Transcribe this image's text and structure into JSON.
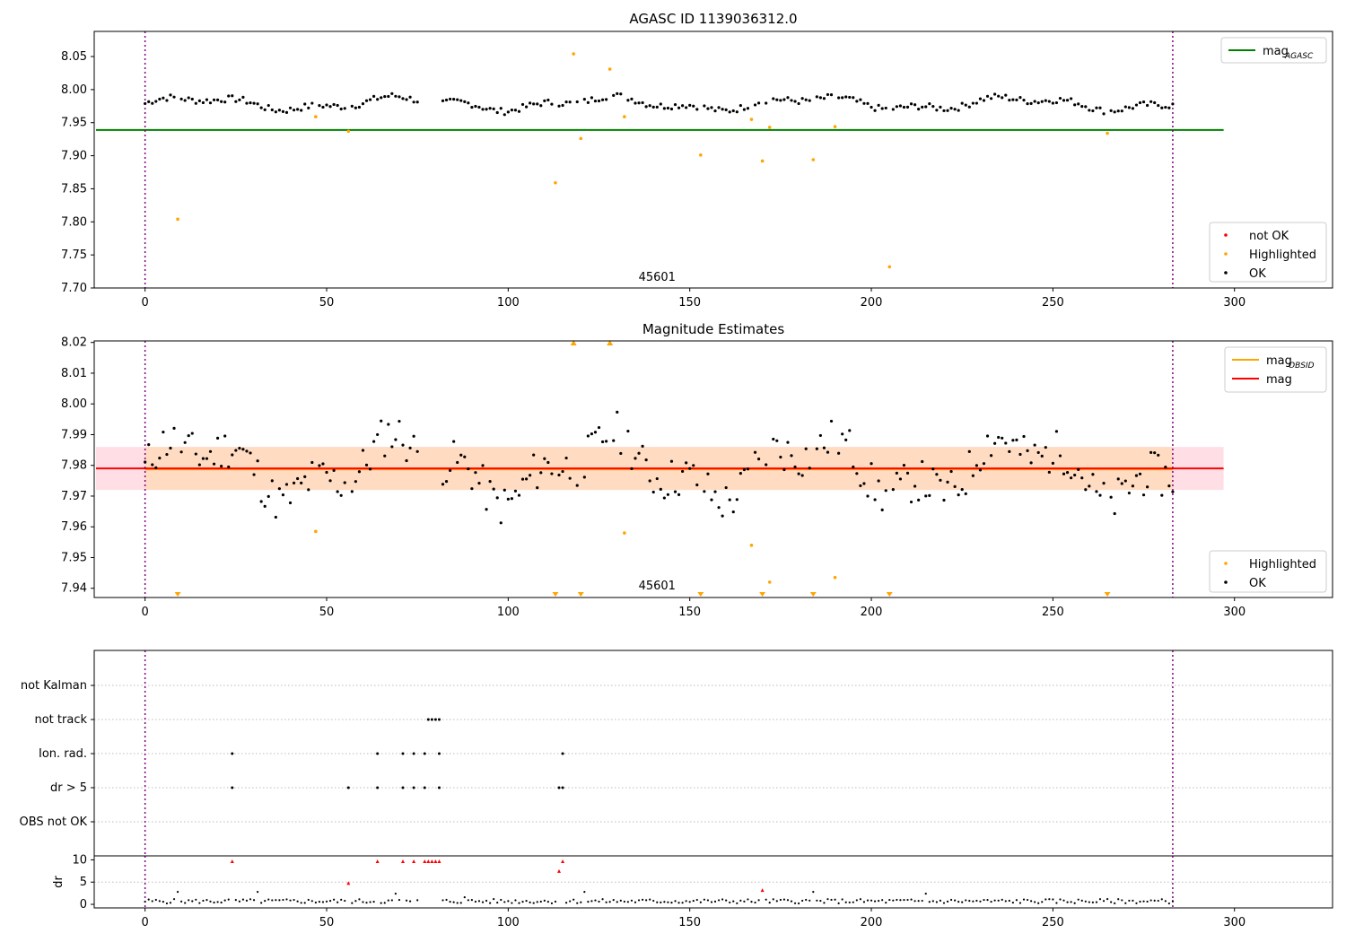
{
  "figure": {
    "title": "AGASC ID 1139036312.0",
    "colors": {
      "ok": "#000000",
      "highlighted": "#ffa500",
      "not_ok": "#ff0000",
      "agasc_line": "#008000",
      "mag_line": "#ff0000",
      "obsid_line": "#ffa500",
      "band_mag": "#ffc0cb",
      "band_obsid": "#ffdab9",
      "obs_boundary": "#800080"
    }
  },
  "chart_data": [
    {
      "type": "scatter",
      "name": "agasc-magnitude-panel",
      "title": "AGASC ID 1139036312.0",
      "xlabel": "",
      "ylabel": "",
      "xlim": [
        -14,
        327
      ],
      "ylim": [
        7.7,
        8.088
      ],
      "xticks": [
        0,
        50,
        100,
        150,
        200,
        250,
        300
      ],
      "yticks": [
        7.7,
        7.75,
        7.8,
        7.85,
        7.9,
        7.95,
        8.0,
        8.05
      ],
      "ytick_labels": [
        "7.70",
        "7.75",
        "7.80",
        "7.85",
        "7.90",
        "7.95",
        "8.00",
        "8.05"
      ],
      "hlines": [
        {
          "name": "mag_AGASC",
          "y": 7.939,
          "x_range": [
            -14,
            297
          ]
        }
      ],
      "obs_boundaries": [
        0,
        283
      ],
      "obsid_label": {
        "text": "45601",
        "x": 141,
        "y": 7.708
      },
      "legend_top": {
        "entries": [
          {
            "label": "mag",
            "subscript": "AGASC",
            "kind": "line",
            "color": "#008000"
          }
        ]
      },
      "legend_bottom": {
        "entries": [
          {
            "label": "not OK",
            "kind": "marker",
            "color": "#ff0000"
          },
          {
            "label": "Highlighted",
            "kind": "marker",
            "color": "#ffa500"
          },
          {
            "label": "OK",
            "kind": "marker",
            "color": "#000000"
          }
        ]
      },
      "highlighted": [
        [
          9,
          7.804
        ],
        [
          47,
          7.959
        ],
        [
          56,
          7.937
        ],
        [
          113,
          7.859
        ],
        [
          118,
          8.054
        ],
        [
          120,
          7.926
        ],
        [
          128,
          8.031
        ],
        [
          132,
          7.959
        ],
        [
          153,
          7.901
        ],
        [
          167,
          7.955
        ],
        [
          170,
          7.892
        ],
        [
          172,
          7.943
        ],
        [
          184,
          7.894
        ],
        [
          190,
          7.944
        ],
        [
          205,
          7.732
        ],
        [
          265,
          7.934
        ]
      ]
    },
    {
      "type": "scatter",
      "name": "magnitude-estimates-panel",
      "title": "Magnitude Estimates",
      "xlabel": "",
      "ylabel": "",
      "xlim": [
        -14,
        327
      ],
      "ylim": [
        7.937,
        8.0205
      ],
      "xticks": [
        0,
        50,
        100,
        150,
        200,
        250,
        300
      ],
      "yticks": [
        7.94,
        7.95,
        7.96,
        7.97,
        7.98,
        7.99,
        8.0,
        8.01,
        8.02
      ],
      "ytick_labels": [
        "7.94",
        "7.95",
        "7.96",
        "7.97",
        "7.98",
        "7.99",
        "8.00",
        "8.01",
        "8.02"
      ],
      "bands": [
        {
          "name": "mag",
          "y": [
            7.972,
            7.986
          ],
          "x_range": [
            -14,
            297
          ],
          "color": "#ffc0cb"
        },
        {
          "name": "mag_OBSID",
          "y": [
            7.972,
            7.986
          ],
          "x_range": [
            0,
            283
          ],
          "color": "#ffdab9"
        }
      ],
      "hlines": [
        {
          "name": "mag_OBSID",
          "y": 7.979,
          "x_range": [
            0,
            283
          ],
          "color": "#ffa500"
        },
        {
          "name": "mag",
          "y": 7.979,
          "x_range": [
            -14,
            297
          ],
          "color": "#ff0000"
        }
      ],
      "obs_boundaries": [
        0,
        283
      ],
      "obsid_label": {
        "text": "45601",
        "x": 141,
        "y": 7.939
      },
      "legend_top": {
        "entries": [
          {
            "label": "mag",
            "subscript": "OBSID",
            "kind": "line",
            "color": "#ffa500"
          },
          {
            "label": "mag",
            "kind": "line",
            "color": "#ff0000"
          }
        ]
      },
      "legend_bottom": {
        "entries": [
          {
            "label": "Highlighted",
            "kind": "marker",
            "color": "#ffa500"
          },
          {
            "label": "OK",
            "kind": "marker",
            "color": "#000000"
          }
        ]
      },
      "highlighted": [
        [
          47,
          7.9585
        ],
        [
          132,
          7.958
        ],
        [
          167,
          7.954
        ],
        [
          172,
          7.942
        ],
        [
          190,
          7.9435
        ]
      ],
      "out_of_range_up": [
        118,
        128
      ],
      "out_of_range_down": [
        9,
        113,
        120,
        153,
        170,
        184,
        205,
        265
      ]
    },
    {
      "type": "scatter",
      "name": "flags-panel",
      "xlim": [
        -14,
        327
      ],
      "categories": [
        "not Kalman",
        "not track",
        "Ion. rad.",
        "dr > 5",
        "OBS not OK"
      ],
      "obs_boundaries": [
        0,
        283
      ],
      "flags": {
        "not track": [
          78,
          79,
          80,
          81
        ],
        "Ion. rad.": [
          24,
          64,
          71,
          74,
          77,
          81,
          115
        ],
        "dr > 5": [
          24,
          56,
          64,
          71,
          74,
          77,
          81,
          114,
          115
        ]
      }
    },
    {
      "type": "scatter",
      "name": "dr-panel",
      "ylabel": "dr",
      "xlim": [
        -14,
        327
      ],
      "ylim": [
        -0.8,
        10.9
      ],
      "xticks": [
        0,
        50,
        100,
        150,
        200,
        250,
        300
      ],
      "yticks": [
        0,
        5,
        10
      ],
      "ytick_labels": [
        "0",
        "5",
        "10"
      ],
      "hline": 5,
      "obs_boundaries": [
        0,
        283
      ],
      "red_points": [
        [
          24,
          9.7
        ],
        [
          56,
          4.8
        ],
        [
          64,
          9.7
        ],
        [
          71,
          9.7
        ],
        [
          74,
          9.7
        ],
        [
          77,
          9.7
        ],
        [
          78,
          9.7
        ],
        [
          79,
          9.7
        ],
        [
          80,
          9.7
        ],
        [
          81,
          9.7
        ],
        [
          114,
          7.5
        ],
        [
          115,
          9.7
        ],
        [
          170,
          3.2
        ]
      ],
      "spikes": [
        [
          9,
          2.8
        ],
        [
          31,
          2.8
        ],
        [
          69,
          2.4
        ],
        [
          88,
          1.6
        ],
        [
          121,
          2.8
        ],
        [
          184,
          2.8
        ],
        [
          215,
          2.4
        ]
      ]
    }
  ]
}
